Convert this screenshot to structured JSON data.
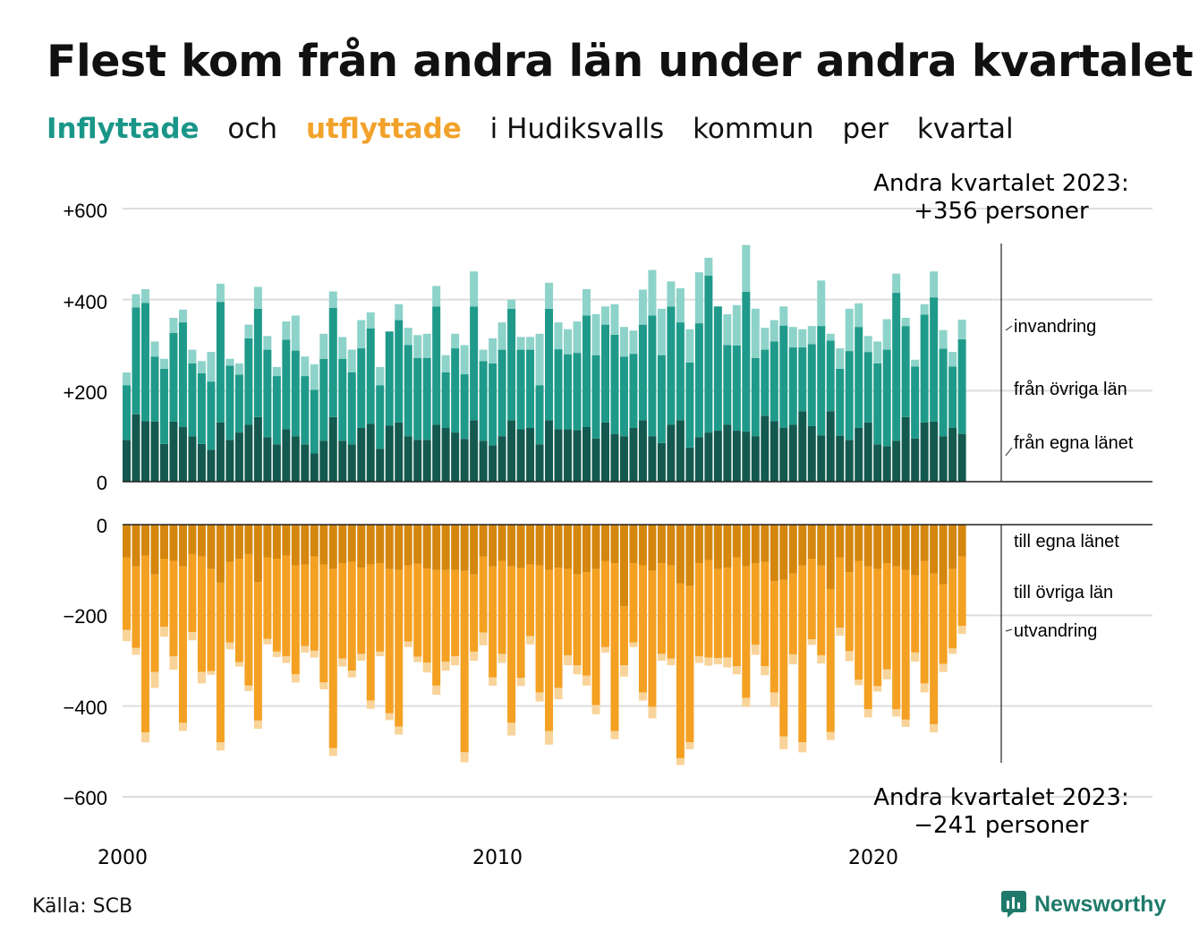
{
  "title": "Flest kom från andra län under andra kvartalet",
  "subtitle": {
    "word1": "Inflyttade",
    "word2": "och",
    "word3": "utflyttade",
    "word4": "i Hudiksvalls",
    "word5": "kommun",
    "word6": "per",
    "word7": "kvartal"
  },
  "source": "Källa: SCB",
  "logo_text": "Newsworthy",
  "colors": {
    "in_egna": "#13594f",
    "in_ovriga": "#1f9a8a",
    "in_invandring": "#8dd3ca",
    "out_egna": "#d4860e",
    "out_ovriga": "#f4a022",
    "out_utvandring": "#f8d49a",
    "grid": "#dddddd",
    "brand": "#1f7a6b"
  },
  "chart_data": {
    "type": "bar",
    "stacked": true,
    "x_unit": "quarter",
    "x_start": "2000 Q1",
    "x_end": "2023 Q2",
    "x_ticks": [
      "2000",
      "2010",
      "2020"
    ],
    "y_ticks": [
      "+600",
      "+400",
      "+200",
      "0",
      "0",
      "−200",
      "−400",
      "−600"
    ],
    "ylim_in": [
      0,
      600
    ],
    "ylim_out": [
      -600,
      0
    ],
    "grid": true,
    "annotations": {
      "in_line1": "Andra kvartalet 2023:",
      "in_line2": "+356 personer",
      "out_line1": "Andra kvartalet 2023:",
      "out_line2": "−241 personer"
    },
    "series_labels": {
      "in_invandring": "invandring",
      "in_ovriga": "från övriga län",
      "in_egna": "från egna länet",
      "out_egna": "till egna länet",
      "out_ovriga": "till övriga län",
      "out_utvandring": "utvandring"
    },
    "totals_in": [
      240,
      412,
      423,
      308,
      270,
      360,
      378,
      290,
      265,
      285,
      435,
      270,
      260,
      345,
      428,
      320,
      252,
      352,
      365,
      275,
      258,
      325,
      418,
      318,
      290,
      355,
      372,
      252,
      328,
      390,
      338,
      322,
      325,
      430,
      278,
      325,
      300,
      462,
      290,
      315,
      350,
      400,
      318,
      318,
      325,
      437,
      350,
      335,
      352,
      423,
      368,
      385,
      390,
      340,
      332,
      422,
      465,
      380,
      440,
      425,
      335,
      460,
      492,
      380,
      368,
      388,
      520,
      380,
      338,
      355,
      385,
      340,
      335,
      342,
      442,
      325,
      293,
      380,
      392,
      320,
      308,
      357,
      457,
      360,
      268,
      390,
      462,
      333,
      285,
      356
    ],
    "totals_in_values": [
      240,
      412,
      423,
      308,
      270,
      360,
      378,
      290,
      265,
      285,
      435,
      270,
      260,
      345,
      428,
      320,
      252,
      352,
      365,
      275,
      258,
      325,
      418,
      318,
      290,
      355,
      372,
      252,
      328,
      390,
      338,
      322,
      325,
      430,
      278,
      325,
      300,
      462,
      290,
      315,
      350,
      400,
      318,
      318,
      325,
      437,
      350,
      335,
      352,
      423,
      368,
      385,
      390,
      340,
      332,
      422,
      465,
      380,
      440,
      425,
      335,
      460,
      492,
      380,
      368,
      388,
      520,
      380,
      338,
      355,
      385,
      340,
      335,
      342,
      442,
      325,
      293,
      380,
      392,
      320,
      308,
      357,
      457,
      360,
      268,
      390,
      462,
      333,
      285,
      356
    ],
    "values_in_egna": [
      92,
      148,
      133,
      132,
      83,
      132,
      120,
      100,
      83,
      70,
      130,
      92,
      108,
      125,
      142,
      98,
      82,
      115,
      100,
      82,
      62,
      90,
      142,
      90,
      82,
      118,
      127,
      72,
      123,
      130,
      100,
      92,
      92,
      125,
      118,
      108,
      94,
      135,
      90,
      80,
      100,
      135,
      115,
      118,
      82,
      135,
      115,
      115,
      113,
      120,
      95,
      130,
      105,
      100,
      118,
      135,
      100,
      85,
      125,
      135,
      75,
      98,
      108,
      112,
      125,
      112,
      110,
      100,
      145,
      133,
      118,
      125,
      155,
      122,
      102,
      155,
      101,
      92,
      118,
      130,
      82,
      78,
      90,
      142,
      95,
      130,
      132,
      100,
      118,
      105
    ],
    "values_in_ovriga": [
      120,
      235,
      260,
      143,
      165,
      195,
      230,
      160,
      155,
      150,
      265,
      163,
      127,
      190,
      238,
      192,
      150,
      197,
      188,
      150,
      140,
      180,
      240,
      180,
      158,
      175,
      210,
      140,
      207,
      225,
      200,
      180,
      180,
      260,
      122,
      185,
      142,
      250,
      175,
      180,
      190,
      245,
      175,
      172,
      130,
      245,
      176,
      165,
      170,
      245,
      183,
      215,
      218,
      175,
      163,
      210,
      265,
      193,
      260,
      215,
      187,
      250,
      345,
      273,
      175,
      187,
      307,
      172,
      145,
      175,
      225,
      170,
      140,
      180,
      240,
      155,
      147,
      195,
      222,
      155,
      178,
      212,
      325,
      200,
      158,
      237,
      273,
      192,
      135,
      208
    ],
    "values_out_egna": [
      -72,
      -92,
      -68,
      -110,
      -75,
      -80,
      -92,
      -65,
      -70,
      -98,
      -128,
      -82,
      -75,
      -65,
      -127,
      -72,
      -75,
      -68,
      -90,
      -88,
      -70,
      -88,
      -98,
      -85,
      -82,
      -95,
      -88,
      -85,
      -98,
      -100,
      -90,
      -86,
      -97,
      -100,
      -100,
      -100,
      -102,
      -110,
      -70,
      -92,
      -80,
      -92,
      -96,
      -88,
      -90,
      -100,
      -95,
      -98,
      -110,
      -105,
      -98,
      -80,
      -85,
      -180,
      -85,
      -90,
      -102,
      -85,
      -90,
      -130,
      -135,
      -85,
      -78,
      -98,
      -95,
      -72,
      -92,
      -85,
      -82,
      -125,
      -122,
      -108,
      -90,
      -75,
      -90,
      -142,
      -72,
      -105,
      -80,
      -92,
      -98,
      -85,
      -92,
      -100,
      -112,
      -80,
      -108,
      -132,
      -98,
      -70
    ],
    "values_out_ovriga": [
      -160,
      -180,
      -390,
      -215,
      -150,
      -210,
      -345,
      -172,
      -255,
      -225,
      -352,
      -178,
      -228,
      -290,
      -305,
      -180,
      -205,
      -222,
      -240,
      -180,
      -208,
      -260,
      -395,
      -210,
      -240,
      -190,
      -300,
      -195,
      -318,
      -345,
      -168,
      -205,
      -207,
      -255,
      -202,
      -190,
      -400,
      -170,
      -168,
      -245,
      -205,
      -345,
      -242,
      -158,
      -280,
      -355,
      -265,
      -190,
      -200,
      -228,
      -300,
      -190,
      -370,
      -130,
      -175,
      -280,
      -300,
      -200,
      -205,
      -385,
      -345,
      -205,
      -215,
      -196,
      -198,
      -240,
      -290,
      -180,
      -230,
      -245,
      -345,
      -178,
      -390,
      -178,
      -198,
      -315,
      -155,
      -174,
      -262,
      -315,
      -258,
      -234,
      -315,
      -330,
      -170,
      -270,
      -332,
      -175,
      -175,
      -153
    ],
    "values_out_utvandring": [
      -25,
      -15,
      -22,
      -35,
      -22,
      -30,
      -18,
      -18,
      -25,
      -8,
      -18,
      -15,
      -10,
      -12,
      -18,
      -12,
      -12,
      -15,
      -18,
      -14,
      -15,
      -15,
      -17,
      -18,
      -15,
      -15,
      -18,
      -10,
      -15,
      -18,
      -12,
      -12,
      -22,
      -20,
      -20,
      -20,
      -22,
      -20,
      -28,
      -18,
      -20,
      -28,
      -18,
      -18,
      -20,
      -30,
      -25,
      -22,
      -20,
      -22,
      -20,
      -12,
      -18,
      -25,
      -10,
      -18,
      -25,
      -15,
      -15,
      -15,
      -15,
      -15,
      -18,
      -14,
      -22,
      -18,
      -20,
      -22,
      -20,
      -32,
      -28,
      -22,
      -22,
      -12,
      -18,
      -18,
      -18,
      -22,
      -12,
      -18,
      -12,
      -22,
      -16,
      -16,
      -20,
      -20,
      -18,
      -18,
      -12,
      -18
    ]
  }
}
